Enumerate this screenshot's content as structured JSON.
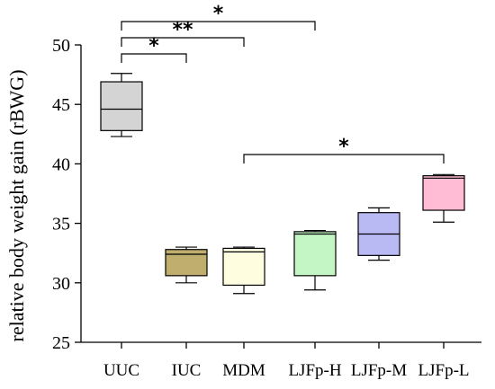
{
  "chart_data": {
    "type": "boxplot",
    "title": "",
    "xlabel": "",
    "ylabel": "relative body weight gain (rBWG)",
    "ylim": [
      25,
      50
    ],
    "yticks": [
      25,
      30,
      35,
      40,
      45,
      50
    ],
    "grid": false,
    "categories": [
      "UUC",
      "IUC",
      "MDM",
      "LJFp-H",
      "LJFp-M",
      "LJFp-L"
    ],
    "boxes": [
      {
        "category": "UUC",
        "min": 42.3,
        "q1": 42.8,
        "median": 44.6,
        "q3": 46.9,
        "max": 47.6,
        "color": "#d4d4d4"
      },
      {
        "category": "IUC",
        "min": 30.0,
        "q1": 30.6,
        "median": 32.4,
        "q3": 32.8,
        "max": 33.0,
        "color": "#bfae6e"
      },
      {
        "category": "MDM",
        "min": 29.1,
        "q1": 29.8,
        "median": 32.6,
        "q3": 32.9,
        "max": 33.0,
        "color": "#fffde0"
      },
      {
        "category": "LJFp-H",
        "min": 29.4,
        "q1": 30.6,
        "median": 34.1,
        "q3": 34.3,
        "max": 34.4,
        "color": "#c4f5c4"
      },
      {
        "category": "LJFp-M",
        "min": 31.9,
        "q1": 32.3,
        "median": 34.1,
        "q3": 35.9,
        "max": 36.3,
        "color": "#b9b9f4"
      },
      {
        "category": "LJFp-L",
        "min": 35.1,
        "q1": 36.1,
        "median": 38.8,
        "q3": 39.0,
        "max": 39.1,
        "color": "#ffbcd4"
      }
    ],
    "significance": [
      {
        "from": "UUC",
        "to": "LJFp-H",
        "label": "*"
      },
      {
        "from": "UUC",
        "to": "MDM",
        "label": "**"
      },
      {
        "from": "UUC",
        "to": "IUC",
        "label": "*"
      },
      {
        "from": "MDM",
        "to": "LJFp-L",
        "label": "*"
      }
    ]
  }
}
